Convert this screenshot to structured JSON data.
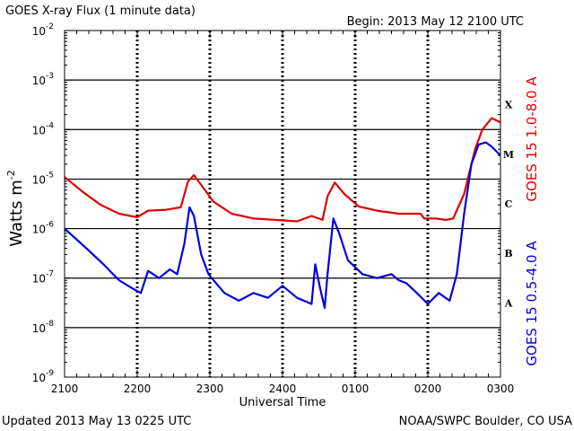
{
  "title": "GOES X-ray Flux (1 minute data)",
  "begin": "Begin: 2013 May 12 2100 UTC",
  "updated": "Updated 2013 May 13 0225 UTC",
  "credit": "NOAA/SWPC Boulder, CO USA",
  "colors": {
    "long": "#e00000",
    "short": "#0000e0"
  },
  "chart_data": {
    "type": "line",
    "title": "GOES X-ray Flux (1 minute data)",
    "xlabel": "Universal Time",
    "ylabel": "Watts m",
    "ylabel_sup": "-2",
    "y_scale": "log",
    "ylim": [
      1e-09,
      0.01
    ],
    "xlim": [
      "2100",
      "0300"
    ],
    "x_ticks": [
      "2100",
      "2200",
      "2300",
      "2400",
      "0100",
      "0200",
      "0300"
    ],
    "y_ticks": [
      {
        "base": "10",
        "exp": "-9"
      },
      {
        "base": "10",
        "exp": "-8"
      },
      {
        "base": "10",
        "exp": "-7"
      },
      {
        "base": "10",
        "exp": "-6"
      },
      {
        "base": "10",
        "exp": "-5"
      },
      {
        "base": "10",
        "exp": "-4"
      },
      {
        "base": "10",
        "exp": "-3"
      },
      {
        "base": "10",
        "exp": "-2"
      }
    ],
    "flare_classes": [
      "A",
      "B",
      "C",
      "M",
      "X"
    ],
    "series": [
      {
        "name": "GOES 15 1.0-8.0 A",
        "color": "#e00000",
        "x_hours_since_2100": [
          0,
          0.25,
          0.5,
          0.75,
          1,
          1.15,
          1.4,
          1.6,
          1.7,
          1.78,
          1.9,
          2.05,
          2.3,
          2.6,
          2.9,
          3.2,
          3.4,
          3.55,
          3.62,
          3.72,
          3.85,
          4.05,
          4.3,
          4.6,
          4.9,
          4.95,
          5.1,
          5.25,
          5.35,
          5.5,
          5.65,
          5.75,
          5.88,
          6.0
        ],
        "values": [
          1.1e-05,
          5.5e-06,
          3e-06,
          2e-06,
          1.7e-06,
          2.3e-06,
          2.4e-06,
          2.7e-06,
          9e-06,
          1.2e-05,
          7e-06,
          3.5e-06,
          2e-06,
          1.6e-06,
          1.5e-06,
          1.4e-06,
          1.8e-06,
          1.5e-06,
          4.5e-06,
          8.5e-06,
          5e-06,
          2.8e-06,
          2.3e-06,
          2e-06,
          2e-06,
          1.6e-06,
          1.6e-06,
          1.5e-06,
          1.6e-06,
          5e-06,
          4e-05,
          0.0001,
          0.00017,
          0.00014
        ]
      },
      {
        "name": "GOES 15 0.5-4.0 A",
        "color": "#0000e0",
        "x_hours_since_2100": [
          0,
          0.3,
          0.55,
          0.75,
          0.95,
          1.05,
          1.15,
          1.3,
          1.45,
          1.55,
          1.65,
          1.72,
          1.78,
          1.88,
          1.98,
          2.2,
          2.4,
          2.6,
          2.8,
          3.0,
          3.2,
          3.4,
          3.45,
          3.52,
          3.58,
          3.62,
          3.7,
          3.78,
          3.9,
          4.1,
          4.3,
          4.5,
          4.6,
          4.7,
          4.85,
          5.0,
          5.15,
          5.3,
          5.4,
          5.5,
          5.6,
          5.7,
          5.8,
          5.88,
          6.0
        ],
        "values": [
          1e-06,
          4e-07,
          1.8e-07,
          9e-08,
          6e-08,
          5e-08,
          1.4e-07,
          1e-07,
          1.5e-07,
          1.2e-07,
          5e-07,
          2.7e-06,
          1.8e-06,
          3e-07,
          1.2e-07,
          5e-08,
          3.5e-08,
          5e-08,
          4e-08,
          7e-08,
          4e-08,
          3e-08,
          1.9e-07,
          6e-08,
          2.5e-08,
          1.2e-07,
          1.6e-06,
          8e-07,
          2.3e-07,
          1.2e-07,
          1e-07,
          1.2e-07,
          9e-08,
          8e-08,
          5e-08,
          3e-08,
          5e-08,
          3.5e-08,
          1.2e-07,
          2e-06,
          2e-05,
          5e-05,
          5.5e-05,
          4.5e-05,
          3e-05
        ]
      }
    ]
  }
}
